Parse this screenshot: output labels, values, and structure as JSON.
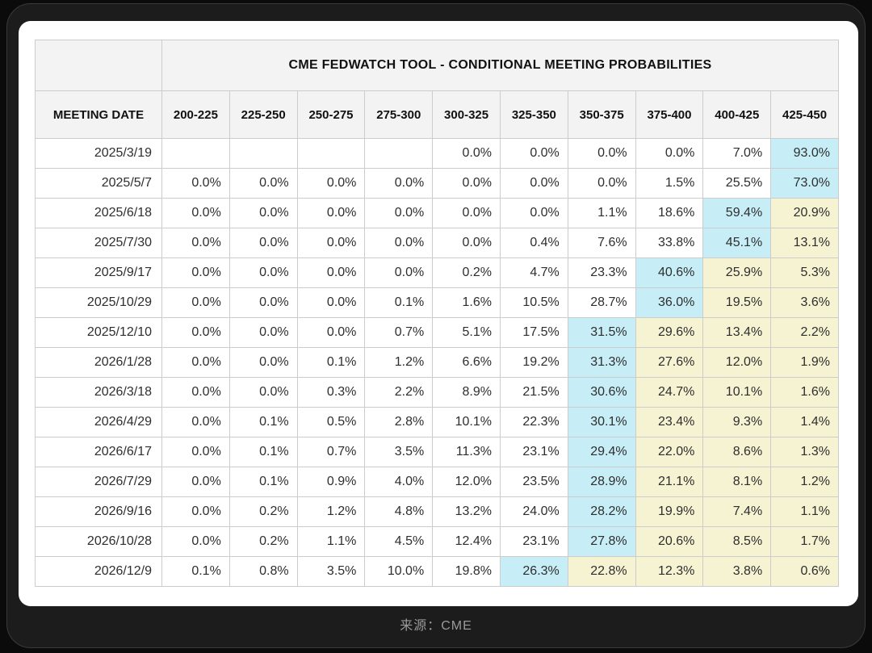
{
  "chart_data": {
    "type": "table",
    "title": "CME FEDWATCH TOOL - CONDITIONAL MEETING PROBABILITIES",
    "columns": [
      "MEETING DATE",
      "200-225",
      "225-250",
      "250-275",
      "275-300",
      "300-325",
      "325-350",
      "350-375",
      "375-400",
      "400-425",
      "425-450"
    ],
    "rows": [
      {
        "date": "2025/3/19",
        "values": [
          "",
          "",
          "",
          "",
          "0.0%",
          "0.0%",
          "0.0%",
          "0.0%",
          "7.0%",
          "93.0%"
        ]
      },
      {
        "date": "2025/5/7",
        "values": [
          "0.0%",
          "0.0%",
          "0.0%",
          "0.0%",
          "0.0%",
          "0.0%",
          "0.0%",
          "1.5%",
          "25.5%",
          "73.0%"
        ]
      },
      {
        "date": "2025/6/18",
        "values": [
          "0.0%",
          "0.0%",
          "0.0%",
          "0.0%",
          "0.0%",
          "0.0%",
          "1.1%",
          "18.6%",
          "59.4%",
          "20.9%"
        ]
      },
      {
        "date": "2025/7/30",
        "values": [
          "0.0%",
          "0.0%",
          "0.0%",
          "0.0%",
          "0.0%",
          "0.4%",
          "7.6%",
          "33.8%",
          "45.1%",
          "13.1%"
        ]
      },
      {
        "date": "2025/9/17",
        "values": [
          "0.0%",
          "0.0%",
          "0.0%",
          "0.0%",
          "0.2%",
          "4.7%",
          "23.3%",
          "40.6%",
          "25.9%",
          "5.3%"
        ]
      },
      {
        "date": "2025/10/29",
        "values": [
          "0.0%",
          "0.0%",
          "0.0%",
          "0.1%",
          "1.6%",
          "10.5%",
          "28.7%",
          "36.0%",
          "19.5%",
          "3.6%"
        ]
      },
      {
        "date": "2025/12/10",
        "values": [
          "0.0%",
          "0.0%",
          "0.0%",
          "0.7%",
          "5.1%",
          "17.5%",
          "31.5%",
          "29.6%",
          "13.4%",
          "2.2%"
        ]
      },
      {
        "date": "2026/1/28",
        "values": [
          "0.0%",
          "0.0%",
          "0.1%",
          "1.2%",
          "6.6%",
          "19.2%",
          "31.3%",
          "27.6%",
          "12.0%",
          "1.9%"
        ]
      },
      {
        "date": "2026/3/18",
        "values": [
          "0.0%",
          "0.0%",
          "0.3%",
          "2.2%",
          "8.9%",
          "21.5%",
          "30.6%",
          "24.7%",
          "10.1%",
          "1.6%"
        ]
      },
      {
        "date": "2026/4/29",
        "values": [
          "0.0%",
          "0.1%",
          "0.5%",
          "2.8%",
          "10.1%",
          "22.3%",
          "30.1%",
          "23.4%",
          "9.3%",
          "1.4%"
        ]
      },
      {
        "date": "2026/6/17",
        "values": [
          "0.0%",
          "0.1%",
          "0.7%",
          "3.5%",
          "11.3%",
          "23.1%",
          "29.4%",
          "22.0%",
          "8.6%",
          "1.3%"
        ]
      },
      {
        "date": "2026/7/29",
        "values": [
          "0.0%",
          "0.1%",
          "0.9%",
          "4.0%",
          "12.0%",
          "23.5%",
          "28.9%",
          "21.1%",
          "8.1%",
          "1.2%"
        ]
      },
      {
        "date": "2026/9/16",
        "values": [
          "0.0%",
          "0.2%",
          "1.2%",
          "4.8%",
          "13.2%",
          "24.0%",
          "28.2%",
          "19.9%",
          "7.4%",
          "1.1%"
        ]
      },
      {
        "date": "2026/10/28",
        "values": [
          "0.0%",
          "0.2%",
          "1.1%",
          "4.5%",
          "12.4%",
          "23.1%",
          "27.8%",
          "20.6%",
          "8.5%",
          "1.7%"
        ]
      },
      {
        "date": "2026/12/9",
        "values": [
          "0.1%",
          "0.8%",
          "3.5%",
          "10.0%",
          "19.8%",
          "26.3%",
          "22.8%",
          "12.3%",
          "3.8%",
          "0.6%"
        ]
      }
    ],
    "layout_hints": {
      "highlight_rule": "max value per row shaded cyan; cells to the right of the max shaded pale yellow",
      "grid": "on",
      "value_alignment": "right"
    }
  },
  "colors": {
    "highlight_max": "#c7eef6",
    "highlight_tail": "#f6f3d3",
    "header_bg": "#f3f3f3",
    "border": "#cccccc"
  },
  "footer": {
    "source_label": "来源：CME"
  }
}
